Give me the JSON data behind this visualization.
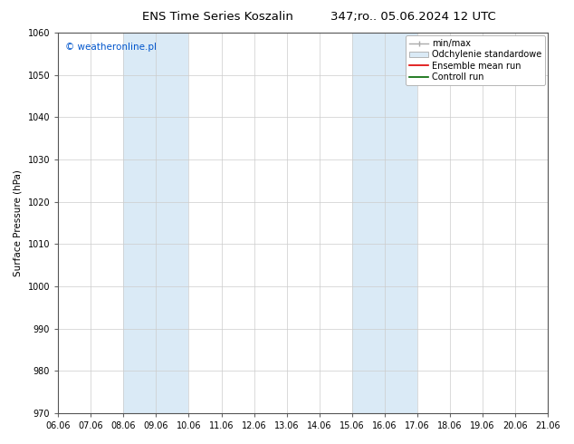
{
  "title_left": "ENS Time Series Koszalin",
  "title_right": "347;ro.. 05.06.2024 12 UTC",
  "ylabel": "Surface Pressure (hPa)",
  "ylim": [
    970,
    1060
  ],
  "yticks": [
    970,
    980,
    990,
    1000,
    1010,
    1020,
    1030,
    1040,
    1050,
    1060
  ],
  "xtick_labels": [
    "06.06",
    "07.06",
    "08.06",
    "09.06",
    "10.06",
    "11.06",
    "12.06",
    "13.06",
    "14.06",
    "15.06",
    "16.06",
    "17.06",
    "18.06",
    "19.06",
    "20.06",
    "21.06"
  ],
  "x_values": [
    0,
    1,
    2,
    3,
    4,
    5,
    6,
    7,
    8,
    9,
    10,
    11,
    12,
    13,
    14,
    15
  ],
  "shaded_bands": [
    {
      "xmin": 2,
      "xmax": 4,
      "color": "#daeaf6"
    },
    {
      "xmin": 9,
      "xmax": 11,
      "color": "#daeaf6"
    }
  ],
  "watermark": "© weatheronline.pl",
  "watermark_color": "#0055cc",
  "bg_color": "#ffffff",
  "plot_bg_color": "#ffffff",
  "grid_color": "#cccccc",
  "title_fontsize": 9.5,
  "axis_fontsize": 7.5,
  "tick_fontsize": 7,
  "legend_fontsize": 7,
  "watermark_fontsize": 7.5
}
